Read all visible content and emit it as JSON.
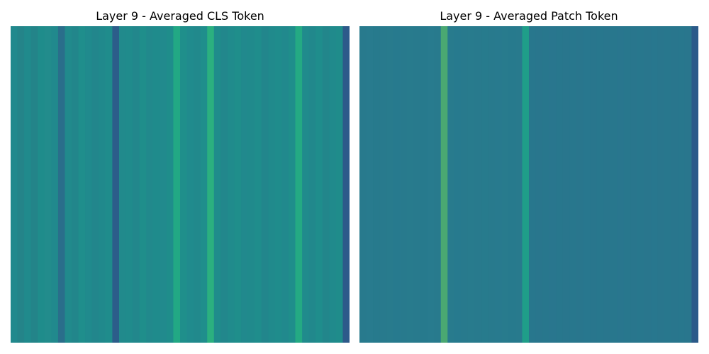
{
  "chart_data": [
    {
      "type": "heatmap",
      "title": "Layer 9 - Averaged CLS Token",
      "xlabel": "",
      "ylabel": "",
      "colormap": "viridis",
      "axes_visible": false,
      "grid": false,
      "rows_identical": true,
      "base_color": "#218a8c",
      "num_columns": 50,
      "column_colors": [
        "#21898d",
        "#248489",
        "#208a8c",
        "#238489",
        "#1f8c8b",
        "#228c8c",
        "#21898d",
        "#2a6e8b",
        "#218a8c",
        "#22868b",
        "#1f8e8c",
        "#208a8d",
        "#22868c",
        "#20898c",
        "#1f8c8c",
        "#2c5d8a",
        "#218a8c",
        "#208b8c",
        "#22878c",
        "#1f8e8b",
        "#21898c",
        "#1f8b8c",
        "#218a8d",
        "#1f8d8b",
        "#22a884",
        "#1f8f8b",
        "#208b8d",
        "#21898c",
        "#1f8e8c",
        "#2bb07f",
        "#1f8c8b",
        "#22878c",
        "#208b8c",
        "#1f8e8b",
        "#21898d",
        "#208a8c",
        "#1f8d8c",
        "#22868c",
        "#208a8c",
        "#1f8c8c",
        "#21898d",
        "#1f8e8b",
        "#24aa83",
        "#208b8c",
        "#21888c",
        "#1f8d8c",
        "#22868b",
        "#208a8c",
        "#1f8c8b",
        "#2d5a8a"
      ]
    },
    {
      "type": "heatmap",
      "title": "Layer 9 - Averaged Patch Token",
      "xlabel": "",
      "ylabel": "",
      "colormap": "viridis",
      "axes_visible": false,
      "grid": false,
      "rows_identical": true,
      "base_color": "#287a8d",
      "num_columns": 50,
      "column_colors": [
        "#287a8d",
        "#287b8e",
        "#277a8d",
        "#287a8d",
        "#287b8d",
        "#277a8e",
        "#287a8d",
        "#287b8d",
        "#287a8d",
        "#277a8d",
        "#287b8e",
        "#287a8d",
        "#4aa872",
        "#287b8d",
        "#277a8e",
        "#287a8d",
        "#287b8d",
        "#287a8d",
        "#277b8d",
        "#287a8d",
        "#287a8e",
        "#287b8d",
        "#277a8d",
        "#287a8d",
        "#1f9e89",
        "#28778d",
        "#29768d",
        "#28778d",
        "#29768e",
        "#28778d",
        "#29768d",
        "#28778d",
        "#29768d",
        "#28778e",
        "#29768d",
        "#28778d",
        "#29768d",
        "#28778d",
        "#29768e",
        "#28778d",
        "#29768d",
        "#28778d",
        "#29768d",
        "#28778e",
        "#29768d",
        "#28778d",
        "#29768d",
        "#28778d",
        "#29768d",
        "#2b5a89"
      ]
    }
  ]
}
